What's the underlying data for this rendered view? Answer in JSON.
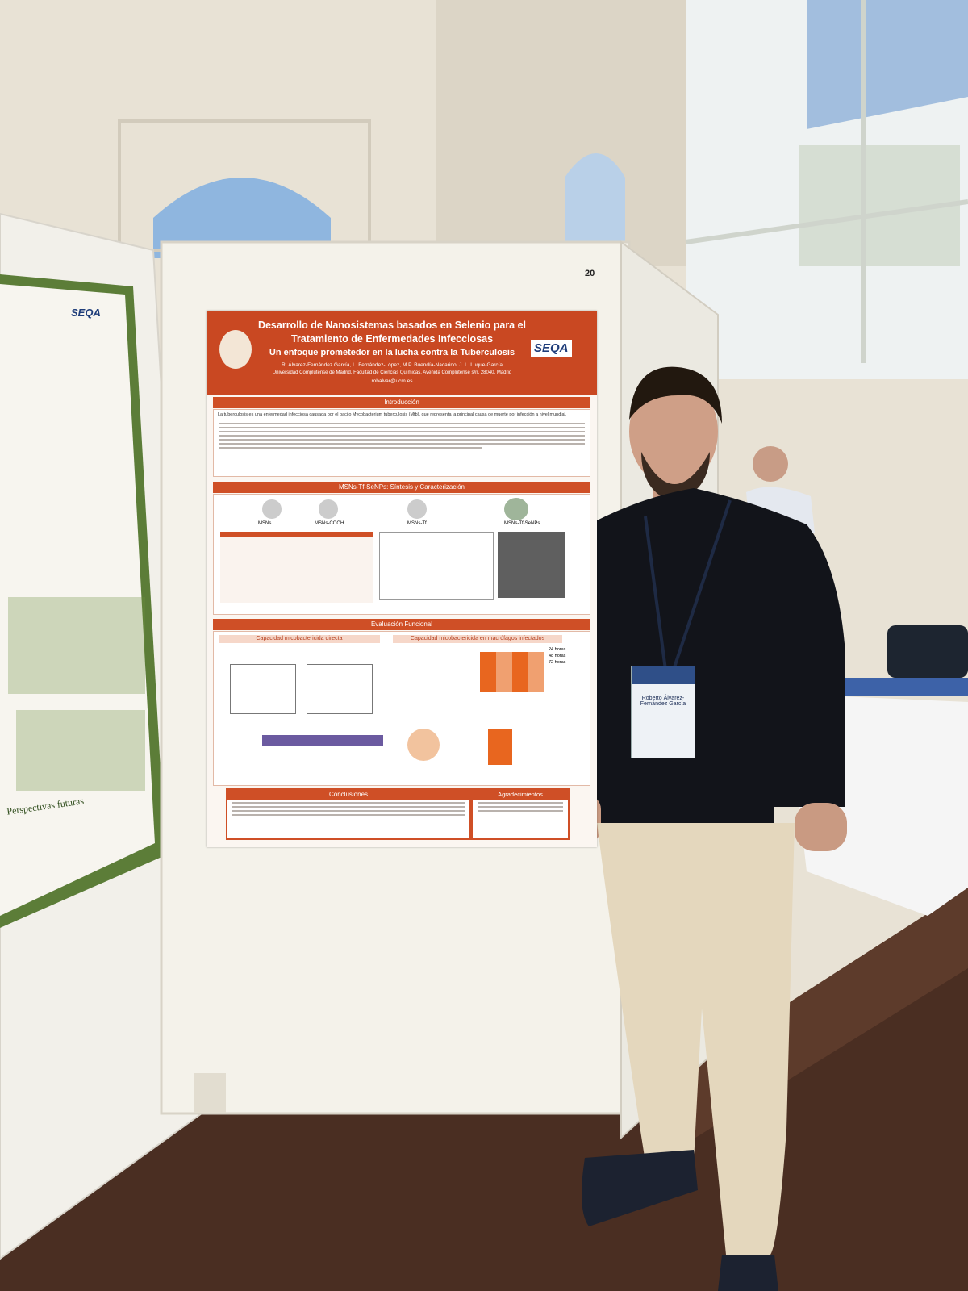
{
  "board_number": "20",
  "poster": {
    "title_lines": [
      "Desarrollo de Nanosistemas basados en Selenio para el",
      "Tratamiento de Enfermedades Infecciosas"
    ],
    "subtitle": "Un enfoque prometedor en la lucha contra la Tuberculosis",
    "authors": "R. Álvarez-Fernández García, L. Fernández-López, M.P. Buendía-Nacarino, J. L. Luque-García",
    "affiliation": "Universidad Complutense de Madrid, Facultad de Ciencias Químicas, Avenida Complutense s/n, 28040, Madrid",
    "email": "robalvar@ucm.es",
    "logo": "SEQA",
    "intro": {
      "heading": "Introducción",
      "text": "La tuberculosis es una enfermedad infecciosa causada por el bacilo Mycobacterium tuberculosis (Mtb), que representa la principal causa de muerte por infección a nivel mundial."
    },
    "synthesis": {
      "heading": "MSNs-Tf-SeNPs: Síntesis y Caracterización",
      "labels": [
        "MSNs",
        "MSNs-COOH",
        "MSNs-Tf",
        "MSNs-Tf-SeNPs"
      ]
    },
    "evaluation": {
      "heading": "Evaluación Funcional",
      "left": "Capacidad micobactericida directa",
      "right": "Capacidad micobactericida en macrófagos infectados",
      "legend": [
        "24 horas",
        "48 horas",
        "72 horas"
      ]
    },
    "conclusions": {
      "heading": "Conclusiones"
    },
    "acknowledgements": {
      "heading": "Agradecimientos"
    }
  },
  "left_poster": {
    "logo": "SEQA",
    "heading": "Perspectivas futuras"
  },
  "badge": {
    "name": "Roberto Álvarez-Fernández García"
  }
}
